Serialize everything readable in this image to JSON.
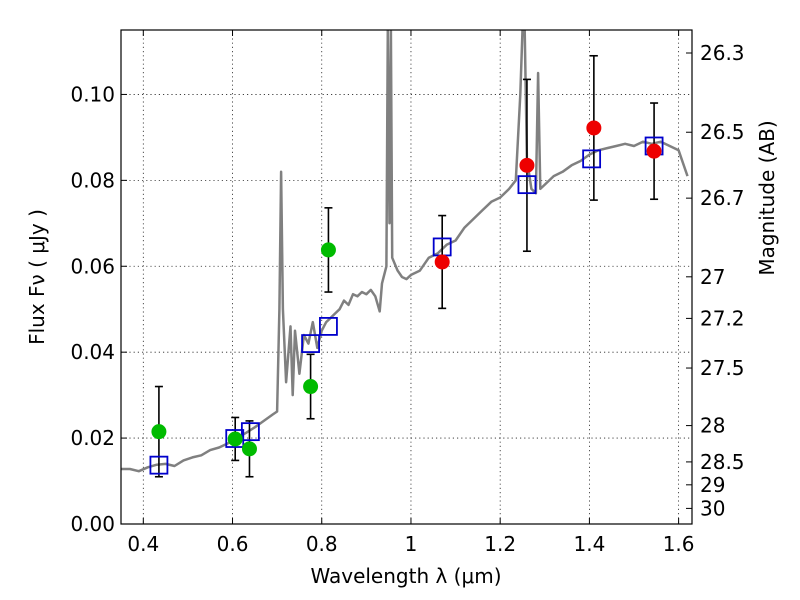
{
  "chart_data": {
    "type": "scatter",
    "title": "",
    "xlabel": "Wavelength  λ (μm)",
    "ylabel": "Flux  Fν ( μJy )",
    "ylabel_right": "Magnitude (AB)",
    "xlim": [
      0.35,
      1.63
    ],
    "ylim": [
      0.0,
      0.115
    ],
    "x_ticks": [
      0.4,
      0.6,
      0.8,
      1.0,
      1.2,
      1.4,
      1.6
    ],
    "x_tick_labels": [
      "0.4",
      "0.6",
      "0.8",
      "1",
      "1.2",
      "1.4",
      "1.6"
    ],
    "y_ticks": [
      0.0,
      0.02,
      0.04,
      0.06,
      0.08,
      0.1
    ],
    "y_tick_labels": [
      "0.00",
      "0.02",
      "0.04",
      "0.06",
      "0.08",
      "0.10"
    ],
    "right_axis_mag_ticks": [
      26.3,
      26.5,
      26.7,
      27,
      27.2,
      27.5,
      28,
      28.5,
      29,
      30
    ],
    "right_axis_tick_labels": [
      "26.3",
      "26.5",
      "26.7",
      "27",
      "27.2",
      "27.5",
      "28",
      "28.5",
      "29",
      "30"
    ],
    "grid": true,
    "colors": {
      "template": "#808080",
      "green": "#00bb00",
      "red": "#ee0000",
      "model_box": "#0000cc",
      "errorbar": "#000000"
    },
    "series": [
      {
        "style": "line",
        "points": [
          [
            0.35,
            0.0128
          ],
          [
            0.37,
            0.0128
          ],
          [
            0.39,
            0.0123
          ],
          [
            0.41,
            0.0132
          ],
          [
            0.43,
            0.0138
          ],
          [
            0.45,
            0.014
          ],
          [
            0.47,
            0.0135
          ],
          [
            0.49,
            0.0148
          ],
          [
            0.51,
            0.0155
          ],
          [
            0.53,
            0.016
          ],
          [
            0.55,
            0.0172
          ],
          [
            0.57,
            0.0178
          ],
          [
            0.59,
            0.0188
          ],
          [
            0.61,
            0.02
          ],
          [
            0.63,
            0.0212
          ],
          [
            0.65,
            0.0225
          ],
          [
            0.67,
            0.024
          ],
          [
            0.69,
            0.0255
          ],
          [
            0.7,
            0.0262
          ],
          [
            0.705,
            0.05
          ],
          [
            0.709,
            0.082
          ],
          [
            0.713,
            0.05
          ],
          [
            0.72,
            0.033
          ],
          [
            0.73,
            0.046
          ],
          [
            0.735,
            0.03
          ],
          [
            0.74,
            0.045
          ],
          [
            0.75,
            0.035
          ],
          [
            0.76,
            0.044
          ],
          [
            0.77,
            0.042
          ],
          [
            0.78,
            0.047
          ],
          [
            0.79,
            0.041
          ],
          [
            0.8,
            0.045
          ],
          [
            0.81,
            0.047
          ],
          [
            0.82,
            0.048
          ],
          [
            0.83,
            0.049
          ],
          [
            0.84,
            0.05
          ],
          [
            0.85,
            0.052
          ],
          [
            0.86,
            0.051
          ],
          [
            0.87,
            0.0535
          ],
          [
            0.88,
            0.053
          ],
          [
            0.89,
            0.054
          ],
          [
            0.9,
            0.0535
          ],
          [
            0.91,
            0.0545
          ],
          [
            0.92,
            0.053
          ],
          [
            0.93,
            0.0495
          ],
          [
            0.935,
            0.056
          ],
          [
            0.945,
            0.06
          ],
          [
            0.948,
            0.115
          ],
          [
            0.952,
            0.07
          ],
          [
            0.955,
            0.115
          ],
          [
            0.958,
            0.062
          ],
          [
            0.97,
            0.059
          ],
          [
            0.98,
            0.0575
          ],
          [
            0.99,
            0.057
          ],
          [
            1.0,
            0.058
          ],
          [
            1.02,
            0.059
          ],
          [
            1.04,
            0.062
          ],
          [
            1.06,
            0.063
          ],
          [
            1.08,
            0.065
          ],
          [
            1.1,
            0.066
          ],
          [
            1.12,
            0.069
          ],
          [
            1.14,
            0.071
          ],
          [
            1.16,
            0.073
          ],
          [
            1.18,
            0.075
          ],
          [
            1.2,
            0.076
          ],
          [
            1.22,
            0.078
          ],
          [
            1.235,
            0.08
          ],
          [
            1.245,
            0.1
          ],
          [
            1.25,
            0.115
          ],
          [
            1.255,
            0.115
          ],
          [
            1.26,
            0.085
          ],
          [
            1.27,
            0.078
          ],
          [
            1.28,
            0.077
          ],
          [
            1.285,
            0.105
          ],
          [
            1.29,
            0.078
          ],
          [
            1.3,
            0.079
          ],
          [
            1.32,
            0.081
          ],
          [
            1.34,
            0.082
          ],
          [
            1.36,
            0.0835
          ],
          [
            1.38,
            0.0845
          ],
          [
            1.4,
            0.086
          ],
          [
            1.42,
            0.087
          ],
          [
            1.44,
            0.0875
          ],
          [
            1.46,
            0.088
          ],
          [
            1.48,
            0.0885
          ],
          [
            1.5,
            0.088
          ],
          [
            1.52,
            0.089
          ],
          [
            1.54,
            0.0885
          ],
          [
            1.56,
            0.089
          ],
          [
            1.58,
            0.088
          ],
          [
            1.6,
            0.087
          ],
          [
            1.62,
            0.081
          ]
        ]
      },
      {
        "style": "errorbar-circle",
        "color": "green",
        "points": [
          {
            "x": 0.435,
            "y": 0.0215,
            "yerr_lo": 0.0105,
            "yerr_hi": 0.0105
          },
          {
            "x": 0.606,
            "y": 0.0198,
            "yerr_lo": 0.005,
            "yerr_hi": 0.005
          },
          {
            "x": 0.638,
            "y": 0.0175,
            "yerr_lo": 0.0065,
            "yerr_hi": 0.0065
          },
          {
            "x": 0.775,
            "y": 0.032,
            "yerr_lo": 0.0075,
            "yerr_hi": 0.0075
          },
          {
            "x": 0.815,
            "y": 0.0638,
            "yerr_lo": 0.0098,
            "yerr_hi": 0.0098
          }
        ]
      },
      {
        "style": "errorbar-circle",
        "color": "red",
        "points": [
          {
            "x": 1.07,
            "y": 0.061,
            "yerr_lo": 0.0108,
            "yerr_hi": 0.0108
          },
          {
            "x": 1.26,
            "y": 0.0835,
            "yerr_lo": 0.02,
            "yerr_hi": 0.02
          },
          {
            "x": 1.41,
            "y": 0.0922,
            "yerr_lo": 0.0168,
            "yerr_hi": 0.0168
          },
          {
            "x": 1.545,
            "y": 0.0868,
            "yerr_lo": 0.0112,
            "yerr_hi": 0.0112
          }
        ]
      },
      {
        "style": "open-square",
        "color": "model_box",
        "points": [
          [
            0.435,
            0.0137
          ],
          [
            0.605,
            0.0199
          ],
          [
            0.64,
            0.0215
          ],
          [
            0.775,
            0.042
          ],
          [
            0.815,
            0.046
          ],
          [
            1.07,
            0.0645
          ],
          [
            1.26,
            0.079
          ],
          [
            1.405,
            0.085
          ],
          [
            1.545,
            0.088
          ]
        ]
      }
    ]
  }
}
